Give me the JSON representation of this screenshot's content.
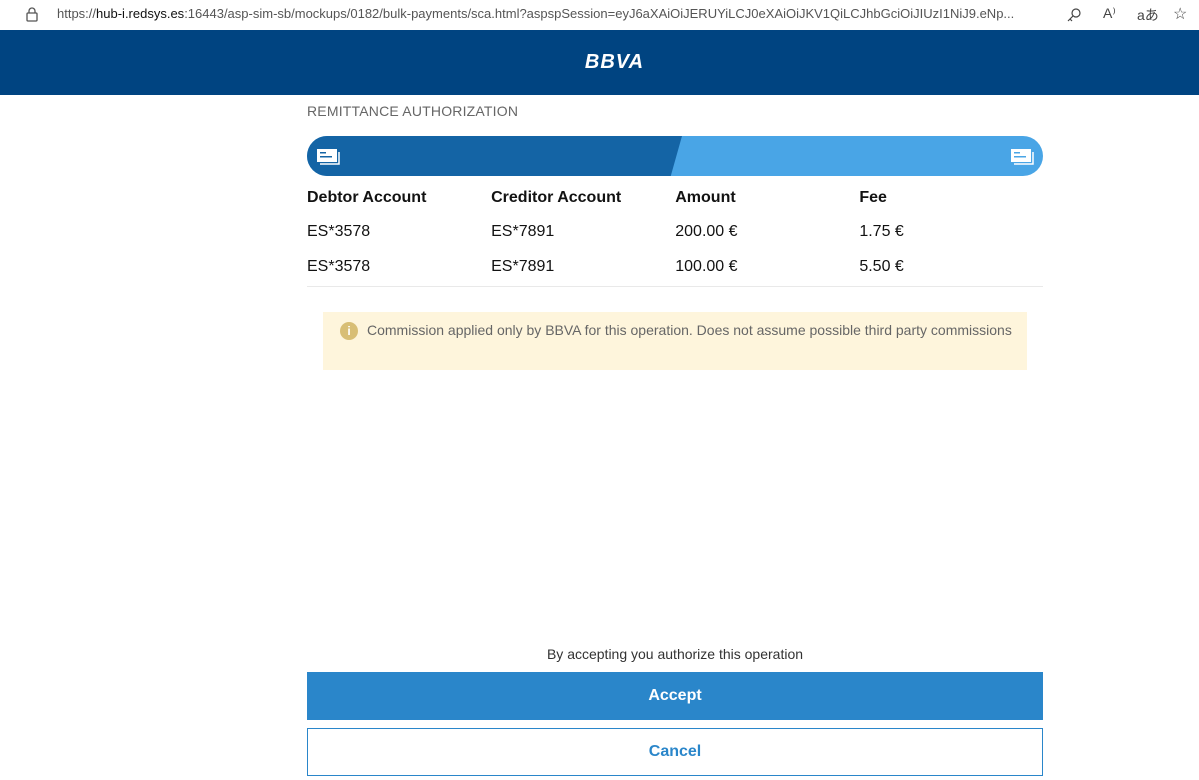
{
  "browser": {
    "url_prefix": "https://",
    "url_host": "hub-i.redsys.es",
    "url_rest": ":16443/asp-sim-sb/mockups/0182/bulk-payments/sca.html?aspspSession=eyJ6aXAiOiJERUYiLCJ0eXAiOiJKV1QiLCJhbGciOiJIUzI1NiJ9.eNp...",
    "icons": [
      "lock-icon",
      "key-icon",
      "read-aloud-icon",
      "translate-icon",
      "favorite-icon"
    ],
    "read_aloud": "A⁾",
    "translate": "aあ"
  },
  "header": {
    "logo": "BBVA",
    "color": "#004481"
  },
  "page": {
    "title": "REMITTANCE AUTHORIZATION"
  },
  "progress": {
    "step": 1,
    "total": 2,
    "done_color": "#1464a5",
    "todo_color": "#49a5e6"
  },
  "table": {
    "headers": [
      "Debtor Account",
      "Creditor Account",
      "Amount",
      "Fee"
    ],
    "rows": [
      [
        "ES*3578",
        "ES*7891",
        "200.00 €",
        "1.75 €"
      ],
      [
        "ES*3578",
        "ES*7891",
        "100.00 €",
        "5.50 €"
      ]
    ]
  },
  "notice": {
    "icon": "info-icon",
    "text": "Commission applied only by BBVA for this operation. Does not assume possible third party commissions"
  },
  "footer": {
    "consent": "By accepting you authorize this operation",
    "accept_label": "Accept",
    "cancel_label": "Cancel",
    "accent": "#2a86ca"
  }
}
